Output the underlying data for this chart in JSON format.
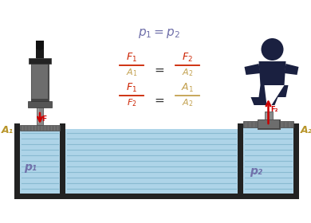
{
  "bg_color": "#ffffff",
  "water_color": "#aed4e8",
  "water_stripe_color": "#7ab0c8",
  "tank_border_color": "#222222",
  "tank_fill_color": "#333333",
  "cylinder_body_color": "#8a8a8a",
  "cylinder_dark_color": "#444444",
  "cylinder_light_color": "#b0b0b0",
  "cylinder_cap_color": "#222222",
  "piston_plate_color": "#666666",
  "arrow_color": "#cc0000",
  "label_gold_color": "#b8952a",
  "formula_red_color": "#cc2200",
  "formula_gold_color": "#b89030",
  "formula_blue_color": "#7070aa",
  "person_color": "#1a2040",
  "eq_sign_color": "#333333",
  "p1_label": "p₁",
  "p2_label": "p₂",
  "A1_label": "A₁",
  "A2_label": "A₂",
  "F_label": "F",
  "F2_label": "F₂"
}
